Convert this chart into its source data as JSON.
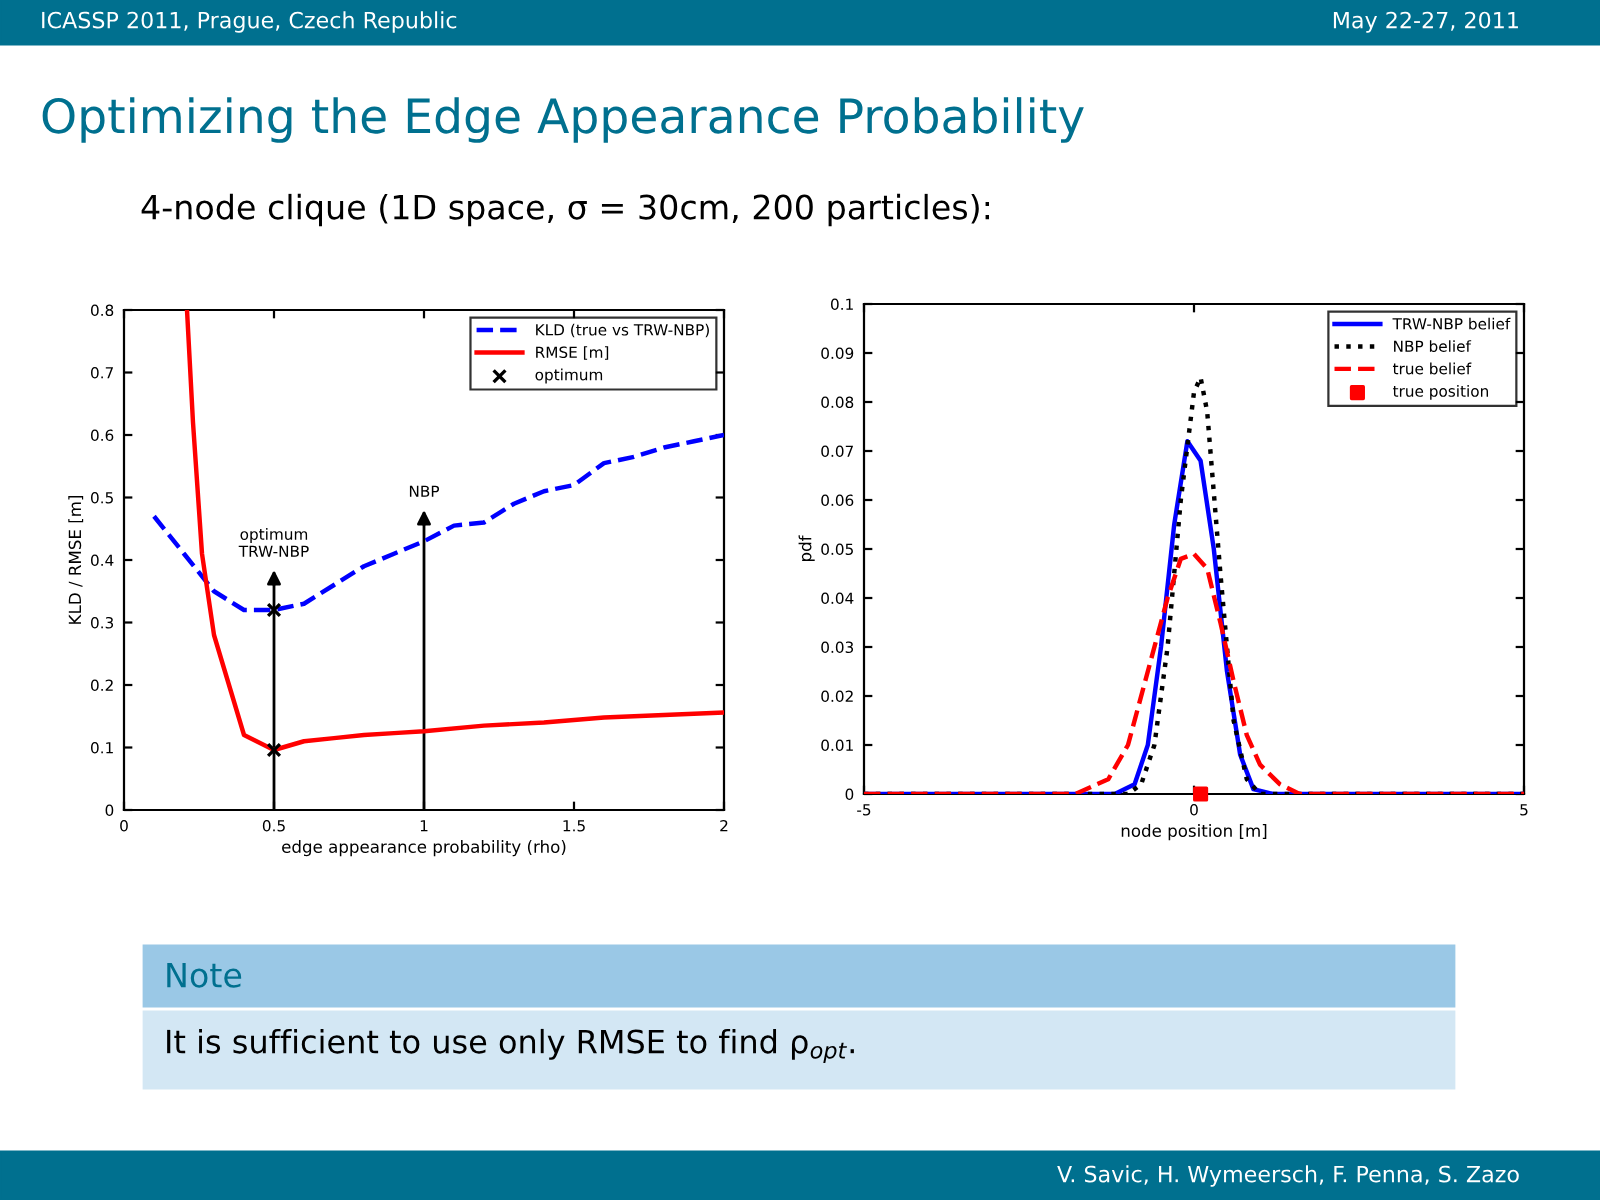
{
  "chart_data": [
    {
      "type": "other",
      "title": "Optimizing the Edge Appearance Probability",
      "subtitle": "4-node clique (1D space, σ = 30cm, 200 particles):",
      "annotations": [
        "ICASSP 2011, Prague, Czech Republic",
        "May 22-27, 2011",
        "Note",
        "It is sufficient to use only RMSE to find ρ$_{opt}$.",
        "V. Savic, H. Wymeersch, F. Penna, S. Zazo"
      ]
    },
    {
      "type": "line",
      "xlabel": "edge appearance probability (rho)",
      "ylabel": "KLD / RMSE [m]",
      "xlim": [
        0,
        2
      ],
      "xticks": [
        0,
        0.5,
        1,
        1.5,
        2
      ],
      "ylim": [
        0,
        0.8
      ],
      "yticks": [
        0,
        0.1,
        0.2,
        0.3,
        0.4,
        0.5,
        0.6,
        0.7,
        0.8
      ],
      "legend": "top right",
      "grid": false,
      "series": [
        {
          "name": "KLD (true vs TRW-NBP)",
          "color": "#0000ff",
          "line_style": "dashed",
          "x": [
            0.1,
            0.2,
            0.3,
            0.4,
            0.5,
            0.6,
            0.7,
            0.8,
            0.9,
            1.0,
            1.1,
            1.2,
            1.3,
            1.4,
            1.5,
            1.6,
            1.7,
            1.8,
            1.9,
            2.0
          ],
          "values": [
            0.47,
            0.41,
            0.35,
            0.32,
            0.32,
            0.33,
            0.36,
            0.39,
            0.41,
            0.43,
            0.455,
            0.46,
            0.49,
            0.51,
            0.52,
            0.555,
            0.565,
            0.58,
            0.59,
            0.6
          ]
        },
        {
          "name": "RMSE [m]",
          "color": "#ff0000",
          "line_style": "solid",
          "x": [
            0.21,
            0.23,
            0.26,
            0.3,
            0.35,
            0.4,
            0.5,
            0.6,
            0.7,
            0.8,
            0.9,
            1.0,
            1.2,
            1.4,
            1.6,
            1.8,
            2.0
          ],
          "values": [
            0.8,
            0.62,
            0.41,
            0.28,
            0.2,
            0.12,
            0.096,
            0.11,
            0.115,
            0.12,
            0.123,
            0.126,
            0.135,
            0.14,
            0.148,
            0.152,
            0.156
          ]
        },
        {
          "name": "optimum",
          "type": "scatter",
          "color": "#000000",
          "marker": "cross",
          "x": [
            0.5,
            0.5
          ],
          "values": [
            0.32,
            0.096
          ]
        }
      ],
      "ref_lines": [
        {
          "axis": "x",
          "value": 0.5,
          "label": "optimum\nTRW-NBP",
          "color": "#000000"
        },
        {
          "axis": "x",
          "value": 1.0,
          "label": "NBP",
          "color": "#000000"
        }
      ]
    },
    {
      "type": "line",
      "xlabel": "node position [m]",
      "ylabel": "pdf",
      "xlim": [
        -5,
        5
      ],
      "xticks": [
        -5,
        0,
        5
      ],
      "ylim": [
        0,
        0.1
      ],
      "yticks": [
        0,
        0.01,
        0.02,
        0.03,
        0.04,
        0.05,
        0.06,
        0.07,
        0.08,
        0.09,
        0.1
      ],
      "legend": "top right",
      "grid": false,
      "series": [
        {
          "name": "TRW-NBP belief",
          "color": "#0000ff",
          "line_style": "solid",
          "x": [
            -5,
            -1.2,
            -0.9,
            -0.7,
            -0.5,
            -0.3,
            -0.1,
            0.1,
            0.3,
            0.5,
            0.7,
            0.9,
            1.2,
            5
          ],
          "values": [
            0,
            0,
            0.002,
            0.01,
            0.03,
            0.055,
            0.072,
            0.068,
            0.05,
            0.025,
            0.008,
            0.001,
            0,
            0
          ]
        },
        {
          "name": "NBP belief",
          "color": "#000000",
          "line_style": "dotted",
          "x": [
            -5,
            -1,
            -0.8,
            -0.6,
            -0.4,
            -0.2,
            0,
            0.1,
            0.2,
            0.4,
            0.6,
            0.8,
            1.0,
            5
          ],
          "values": [
            0,
            0,
            0.002,
            0.01,
            0.03,
            0.06,
            0.082,
            0.085,
            0.078,
            0.045,
            0.015,
            0.003,
            0,
            0
          ]
        },
        {
          "name": "true belief",
          "color": "#ff0000",
          "line_style": "dashed",
          "x": [
            -5,
            -1.8,
            -1.3,
            -1,
            -0.7,
            -0.4,
            -0.2,
            0,
            0.2,
            0.4,
            0.6,
            0.8,
            1.0,
            1.3,
            1.6,
            5
          ],
          "values": [
            0,
            0,
            0.003,
            0.01,
            0.025,
            0.04,
            0.048,
            0.049,
            0.046,
            0.035,
            0.023,
            0.012,
            0.006,
            0.002,
            0,
            0
          ]
        },
        {
          "name": "true position",
          "type": "scatter",
          "color": "#ff0000",
          "marker": "square",
          "x": [
            0.1
          ],
          "values": [
            0
          ]
        }
      ]
    }
  ]
}
